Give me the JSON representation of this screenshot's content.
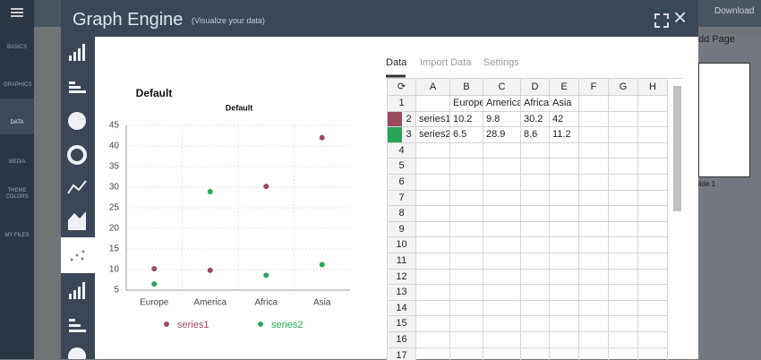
{
  "sidebar": {
    "items": [
      "BASICS",
      "GRAPHICS",
      "DATA",
      "MEDIA",
      "THEME COLORS",
      "MY FILES"
    ]
  },
  "background": {
    "download": "Download",
    "add_page": "dd Page",
    "slide": "lide 1"
  },
  "modal": {
    "title": "Graph Engine",
    "subtitle": "(Visualize your data)",
    "tabs": [
      "Data",
      "Import Data",
      "Settings"
    ]
  },
  "chart": {
    "type": "scatter",
    "title": "Default",
    "subtitle": "Default",
    "categories": [
      "Europe",
      "America",
      "Africa",
      "Asia"
    ],
    "series": [
      {
        "name": "series1",
        "color": "#9b4b5e",
        "values": [
          10.2,
          9.8,
          30.2,
          42
        ]
      },
      {
        "name": "series2",
        "color": "#27a65a",
        "values": [
          6.5,
          28.9,
          8.6,
          11.2
        ]
      }
    ],
    "ylim": [
      5,
      45
    ],
    "yticks": [
      5,
      10,
      15,
      20,
      25,
      30,
      35,
      40,
      45
    ],
    "grid": true
  },
  "sheet": {
    "columns": [
      "A",
      "B",
      "C",
      "D",
      "E",
      "F",
      "G",
      "H"
    ],
    "row_numbers": [
      1,
      2,
      3,
      4,
      5,
      6,
      7,
      8,
      9,
      10,
      11,
      12,
      13,
      14,
      15,
      16,
      17
    ]
  }
}
